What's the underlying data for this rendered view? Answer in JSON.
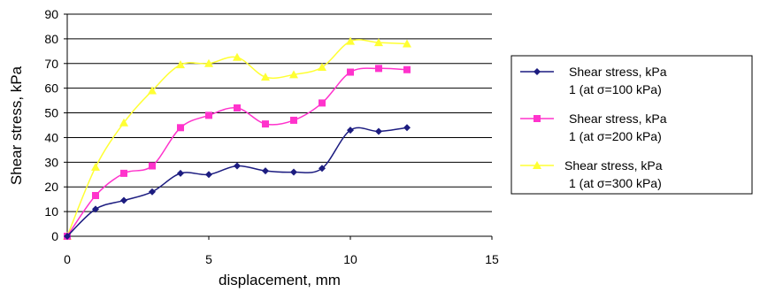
{
  "chart_data": {
    "type": "line",
    "xlabel": "displacement, mm",
    "ylabel": "Shear stress, kPa",
    "xlim": [
      0,
      15
    ],
    "ylim": [
      0,
      90
    ],
    "x_ticks": [
      0,
      5,
      10,
      15
    ],
    "y_ticks": [
      0,
      10,
      20,
      30,
      40,
      50,
      60,
      70,
      80,
      90
    ],
    "grid": "horizontal",
    "legend_position": "right",
    "series": [
      {
        "name_line1": "Shear stress, kPa",
        "name_line2": "1 (at σ=100 kPa)",
        "color": "#1c1c80",
        "marker": "diamond",
        "x": [
          0,
          1,
          2,
          3,
          4,
          5,
          6,
          7,
          8,
          9,
          10,
          11,
          12
        ],
        "y": [
          0,
          11,
          14.5,
          18,
          25.5,
          25,
          28.5,
          26.5,
          26,
          27.5,
          43,
          42.5,
          44
        ]
      },
      {
        "name_line1": "Shear stress, kPa",
        "name_line2": "1 (at σ=200 kPa)",
        "color": "#ff33cc",
        "marker": "square",
        "x": [
          0,
          1,
          2,
          3,
          4,
          5,
          6,
          7,
          8,
          9,
          10,
          11,
          12
        ],
        "y": [
          0,
          16.5,
          25.5,
          28.5,
          44,
          49,
          52,
          45.5,
          47,
          54,
          66.5,
          68,
          67.5
        ]
      },
      {
        "name_line1": "Shear stress, kPa",
        "name_line2": "1 (at σ=300 kPa)",
        "color": "#ffff33",
        "marker": "triangle",
        "x": [
          0,
          1,
          2,
          3,
          4,
          5,
          6,
          7,
          8,
          9,
          10,
          11,
          12
        ],
        "y": [
          0,
          28,
          46,
          59,
          69.5,
          70,
          72.5,
          64.5,
          65.5,
          68.5,
          79,
          78.5,
          78
        ]
      }
    ]
  }
}
